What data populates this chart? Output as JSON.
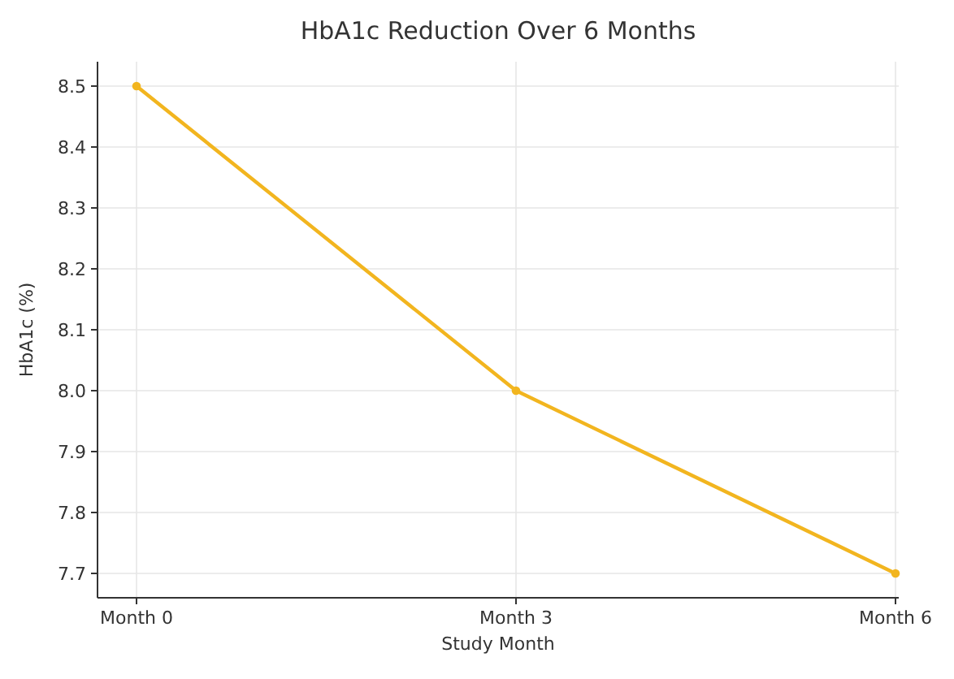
{
  "chart_data": {
    "type": "line",
    "title": "HbA1c Reduction Over 6 Months",
    "xlabel": "Study Month",
    "ylabel": "HbA1c (%)",
    "categories": [
      "Month 0",
      "Month 3",
      "Month 6"
    ],
    "series": [
      {
        "color": "#f2b51f",
        "values": [
          8.5,
          8.0,
          7.7
        ]
      }
    ],
    "ylim": [
      7.66,
      8.54
    ],
    "yticks": [
      7.7,
      7.8,
      7.9,
      {
        "value": 8,
        "label": "8.0"
      },
      8.1,
      8.2,
      8.3,
      8.4,
      8.5
    ],
    "grid": true,
    "marker": "circle",
    "line_style": "solid"
  }
}
